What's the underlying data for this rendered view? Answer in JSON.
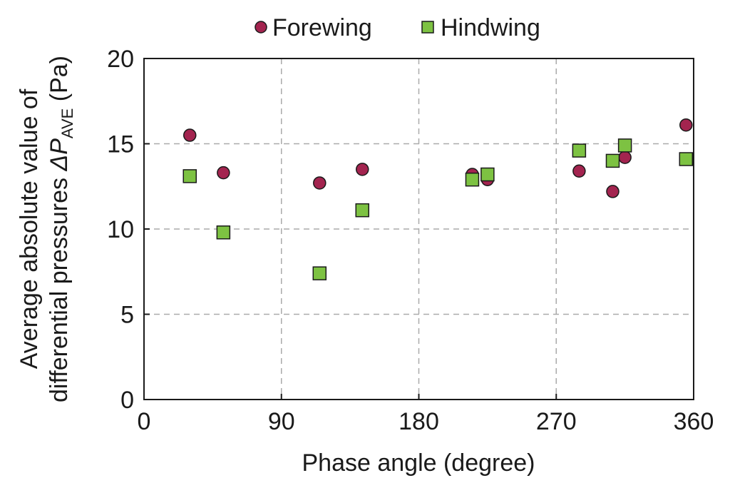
{
  "chart_data": {
    "type": "scatter",
    "xlabel": "Phase angle (degree)",
    "ylabel_line1": "Average absolute value of",
    "ylabel_line2_prefix": "differential pressures ",
    "ylabel_symbol": "ΔP",
    "ylabel_subscript": "AVE",
    "ylabel_unit": " (Pa)",
    "xlim": [
      0,
      360
    ],
    "ylim": [
      0,
      20
    ],
    "xticks": [
      0,
      90,
      180,
      270,
      360
    ],
    "yticks": [
      0,
      5,
      10,
      15,
      20
    ],
    "grid": true,
    "legend_position": "top-center",
    "series": [
      {
        "name": "Forewing",
        "marker": "circle",
        "color": "#a3244f",
        "points": [
          {
            "x": 30,
            "y": 15.5
          },
          {
            "x": 52,
            "y": 13.3
          },
          {
            "x": 115,
            "y": 12.7
          },
          {
            "x": 143,
            "y": 13.5
          },
          {
            "x": 215,
            "y": 13.2
          },
          {
            "x": 225,
            "y": 12.9
          },
          {
            "x": 285,
            "y": 13.4
          },
          {
            "x": 307,
            "y": 12.2
          },
          {
            "x": 315,
            "y": 14.2
          },
          {
            "x": 355,
            "y": 16.1
          }
        ]
      },
      {
        "name": "Hindwing",
        "marker": "square",
        "color": "#7dc242",
        "points": [
          {
            "x": 30,
            "y": 13.1
          },
          {
            "x": 52,
            "y": 9.8
          },
          {
            "x": 115,
            "y": 7.4
          },
          {
            "x": 143,
            "y": 11.1
          },
          {
            "x": 215,
            "y": 12.9
          },
          {
            "x": 225,
            "y": 13.2
          },
          {
            "x": 285,
            "y": 14.6
          },
          {
            "x": 307,
            "y": 14.0
          },
          {
            "x": 315,
            "y": 14.9
          },
          {
            "x": 355,
            "y": 14.1
          }
        ]
      }
    ]
  }
}
